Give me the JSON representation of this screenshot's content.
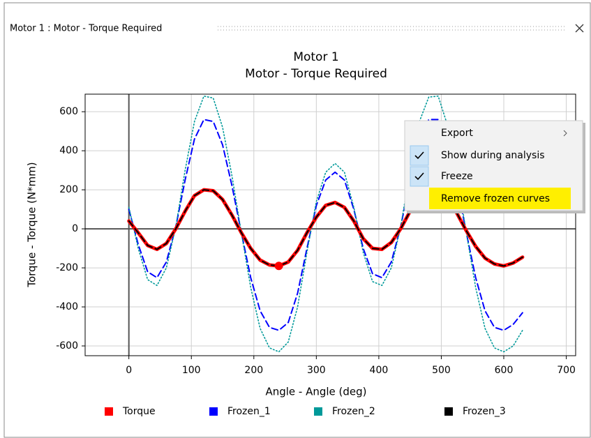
{
  "window": {
    "title": "Motor 1 : Motor - Torque Required"
  },
  "chart_data": {
    "type": "line",
    "title": [
      "Motor 1",
      "Motor - Torque Required"
    ],
    "xlabel": "Angle - Angle (deg)",
    "ylabel": "Torque - Torque (N*mm)",
    "x": [
      0,
      15,
      30,
      45,
      60,
      75,
      90,
      105,
      120,
      135,
      150,
      165,
      180,
      195,
      210,
      225,
      240,
      255,
      270,
      285,
      300,
      315,
      330,
      345,
      360,
      375,
      390,
      405,
      420,
      435,
      450,
      465,
      480,
      495,
      510,
      525,
      540,
      555,
      570,
      585,
      600,
      615,
      630
    ],
    "series": [
      {
        "name": "Torque",
        "color": "#ff0000",
        "line_style": "solid",
        "values": [
          40,
          -20,
          -85,
          -105,
          -75,
          0,
          90,
          170,
          200,
          195,
          150,
          70,
          -20,
          -100,
          -160,
          -185,
          -190,
          -170,
          -110,
          -20,
          60,
          120,
          135,
          110,
          40,
          -50,
          -100,
          -105,
          -70,
          0,
          90,
          165,
          200,
          200,
          160,
          80,
          -10,
          -90,
          -150,
          -180,
          -190,
          -175,
          -145
        ]
      },
      {
        "name": "Frozen_1",
        "color": "#0000ff",
        "line_style": "dashed",
        "values": [
          100,
          -80,
          -220,
          -250,
          -170,
          10,
          250,
          460,
          560,
          550,
          430,
          220,
          -20,
          -250,
          -420,
          -505,
          -520,
          -480,
          -330,
          -100,
          120,
          250,
          290,
          250,
          100,
          -100,
          -230,
          -250,
          -170,
          10,
          250,
          460,
          560,
          560,
          440,
          230,
          -20,
          -250,
          -420,
          -505,
          -520,
          -490,
          -430
        ]
      },
      {
        "name": "Frozen_2",
        "color": "#009999",
        "line_style": "dotted",
        "values": [
          110,
          -100,
          -260,
          -290,
          -200,
          10,
          300,
          550,
          680,
          670,
          520,
          270,
          -20,
          -300,
          -510,
          -610,
          -630,
          -580,
          -400,
          -120,
          140,
          290,
          335,
          290,
          110,
          -120,
          -270,
          -290,
          -200,
          10,
          300,
          550,
          675,
          680,
          530,
          280,
          -20,
          -300,
          -510,
          -610,
          -630,
          -600,
          -520
        ]
      },
      {
        "name": "Frozen_3",
        "color": "#000000",
        "line_style": "dashed",
        "values": [
          40,
          -20,
          -85,
          -105,
          -75,
          0,
          90,
          170,
          200,
          195,
          150,
          70,
          -20,
          -100,
          -160,
          -185,
          -190,
          -170,
          -110,
          -20,
          60,
          120,
          135,
          110,
          40,
          -50,
          -100,
          -105,
          -70,
          0,
          90,
          165,
          200,
          200,
          160,
          80,
          -10,
          -90,
          -150,
          -180,
          -190,
          -175,
          -145
        ]
      }
    ],
    "marker": {
      "x": 240,
      "y": -190,
      "color": "#ff0000"
    },
    "xlim": [
      -70,
      715
    ],
    "xticks": [
      0,
      100,
      200,
      300,
      400,
      500,
      600,
      700
    ],
    "ylim": [
      -650,
      690
    ],
    "yticks": [
      -600,
      -400,
      -200,
      0,
      200,
      400,
      600
    ],
    "grid": true,
    "legend": "bottom"
  },
  "context_menu": {
    "items": [
      {
        "label": "Export",
        "submenu": true
      },
      {
        "label": "Show during analysis",
        "checked": true
      },
      {
        "label": "Freeze",
        "checked": true
      },
      {
        "label": "Remove frozen curves",
        "highlighted": true
      }
    ]
  }
}
